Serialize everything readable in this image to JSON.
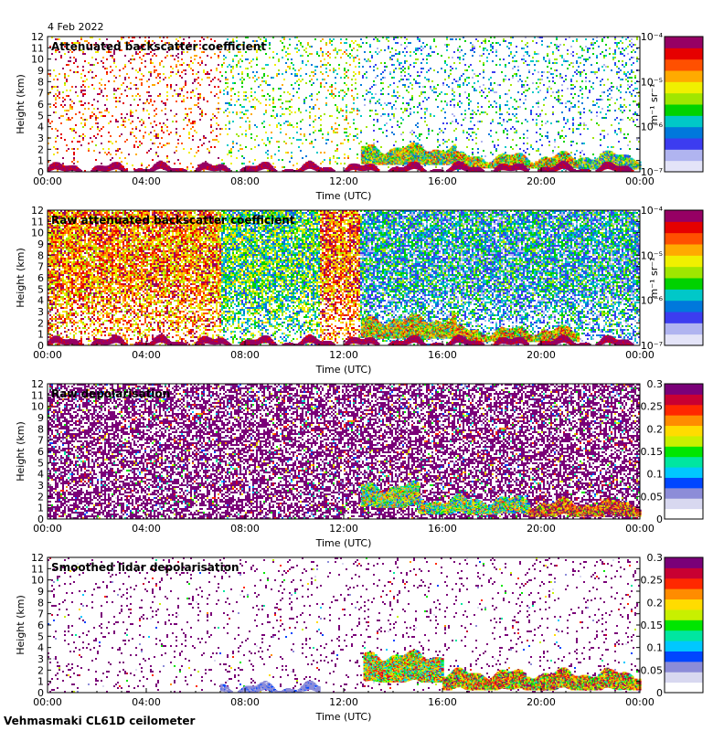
{
  "header": {
    "date": "4 Feb 2022"
  },
  "footer": {
    "site": "Vehmasmaki CL61D ceilometer"
  },
  "colors": {
    "beta_scale": [
      "#e4e4f8",
      "#b0b4f0",
      "#3c3cf0",
      "#0078dc",
      "#00c8c8",
      "#00d200",
      "#a0e600",
      "#f0f000",
      "#ffaa00",
      "#ff5000",
      "#e60000",
      "#960064"
    ],
    "depol_scale": [
      "#ffffff",
      "#d8d8f0",
      "#8c8cd8",
      "#0046ff",
      "#00c8ff",
      "#00e6a0",
      "#00e600",
      "#c8f000",
      "#ffdc00",
      "#ff8c00",
      "#ff2800",
      "#c80032",
      "#7a0078"
    ]
  },
  "chart_data": [
    {
      "type": "heatmap",
      "title": "Attenuated backscatter coefficient",
      "xlabel": "Time (UTC)",
      "ylabel": "Height (km)",
      "x_ticks": [
        "00:00",
        "04:00",
        "08:00",
        "12:00",
        "16:00",
        "20:00",
        "00:00"
      ],
      "x_range_hours": [
        0,
        24
      ],
      "ylim": [
        0,
        12
      ],
      "y_ticks": [
        "0",
        "1",
        "2",
        "3",
        "4",
        "5",
        "6",
        "7",
        "8",
        "9",
        "10",
        "11",
        "12"
      ],
      "colorbar": {
        "scale": "log",
        "range": [
          1e-07,
          0.0001
        ],
        "ticks": [
          "10⁻⁷",
          "10⁻⁶",
          "10⁻⁵",
          "10⁻⁴"
        ],
        "label": "m⁻¹ sr⁻¹"
      },
      "mode": "beta",
      "noise_density": 0.16,
      "noise_segments": [
        [
          0,
          7,
          0.8
        ],
        [
          7,
          11,
          0.5
        ],
        [
          11,
          12.6,
          0.55
        ],
        [
          12.6,
          24,
          0.35
        ]
      ],
      "features": [
        {
          "kind": "layer",
          "x0": 12.7,
          "x1": 16.5,
          "h0": 0.6,
          "h1": 2.0,
          "level": 0.55
        },
        {
          "kind": "layer",
          "x0": 16.5,
          "x1": 21.5,
          "h0": 0.3,
          "h1": 1.2,
          "level": 0.6
        },
        {
          "kind": "layer",
          "x0": 21.5,
          "x1": 24,
          "h0": 0.2,
          "h1": 1.3,
          "level": 0.45
        },
        {
          "kind": "ground",
          "x0": 0,
          "x1": 24,
          "h0": 0,
          "h1": 0.3,
          "level": 0.9
        }
      ]
    },
    {
      "type": "heatmap",
      "title": "Raw attenuated backscatter coefficient",
      "xlabel": "Time (UTC)",
      "ylabel": "Height (km)",
      "x_ticks": [
        "00:00",
        "04:00",
        "08:00",
        "12:00",
        "16:00",
        "20:00",
        "00:00"
      ],
      "x_range_hours": [
        0,
        24
      ],
      "ylim": [
        0,
        12
      ],
      "y_ticks": [
        "0",
        "1",
        "2",
        "3",
        "4",
        "5",
        "6",
        "7",
        "8",
        "9",
        "10",
        "11",
        "12"
      ],
      "colorbar": {
        "scale": "log",
        "range": [
          1e-07,
          0.0001
        ],
        "ticks": [
          "10⁻⁷",
          "10⁻⁶",
          "10⁻⁵",
          "10⁻⁴"
        ],
        "label": "m⁻¹ sr⁻¹"
      },
      "mode": "beta-dense",
      "noise_density": 0.85,
      "noise_segments": [
        [
          0,
          7,
          0.75
        ],
        [
          7,
          11,
          0.45
        ],
        [
          11,
          12.6,
          0.78
        ],
        [
          12.6,
          24,
          0.32
        ]
      ],
      "features": [
        {
          "kind": "layer",
          "x0": 12.7,
          "x1": 16.5,
          "h0": 0.6,
          "h1": 2.2,
          "level": 0.6
        },
        {
          "kind": "layer",
          "x0": 16.5,
          "x1": 21.5,
          "h0": 0.3,
          "h1": 1.2,
          "level": 0.65
        },
        {
          "kind": "ground",
          "x0": 0,
          "x1": 24,
          "h0": 0,
          "h1": 0.3,
          "level": 0.9
        }
      ]
    },
    {
      "type": "heatmap",
      "title": "Raw depolarisation",
      "xlabel": "Time (UTC)",
      "ylabel": "Height (km)",
      "x_ticks": [
        "00:00",
        "04:00",
        "08:00",
        "12:00",
        "16:00",
        "20:00",
        "00:00"
      ],
      "x_range_hours": [
        0,
        24
      ],
      "ylim": [
        0,
        12
      ],
      "y_ticks": [
        "0",
        "1",
        "2",
        "3",
        "4",
        "5",
        "6",
        "7",
        "8",
        "9",
        "10",
        "11",
        "12"
      ],
      "colorbar": {
        "scale": "linear",
        "range": [
          0,
          0.3
        ],
        "ticks": [
          "0",
          "0.05",
          "0.1",
          "0.15",
          "0.2",
          "0.25",
          "0.3"
        ],
        "label": ""
      },
      "mode": "depol-dense",
      "noise_density": 0.6,
      "noise_segments": [
        [
          0,
          24,
          1.0
        ]
      ],
      "features": [
        {
          "kind": "layer",
          "x0": 12.7,
          "x1": 15.0,
          "h0": 1.0,
          "h1": 2.8,
          "level": 0.5
        },
        {
          "kind": "layer",
          "x0": 15.0,
          "x1": 19.5,
          "h0": 0.4,
          "h1": 1.6,
          "level": 0.5
        },
        {
          "kind": "layer",
          "x0": 19.5,
          "x1": 24,
          "h0": 0.2,
          "h1": 1.3,
          "level": 0.8
        }
      ]
    },
    {
      "type": "heatmap",
      "title": "Smoothed lidar depolarisation",
      "xlabel": "Time (UTC)",
      "ylabel": "Height (km)",
      "x_ticks": [
        "00:00",
        "04:00",
        "08:00",
        "12:00",
        "16:00",
        "20:00",
        "00:00"
      ],
      "x_range_hours": [
        0,
        24
      ],
      "ylim": [
        0,
        12
      ],
      "y_ticks": [
        "0",
        "1",
        "2",
        "3",
        "4",
        "5",
        "6",
        "7",
        "8",
        "9",
        "10",
        "11",
        "12"
      ],
      "colorbar": {
        "scale": "linear",
        "range": [
          0,
          0.3
        ],
        "ticks": [
          "0",
          "0.05",
          "0.1",
          "0.15",
          "0.2",
          "0.25",
          "0.3"
        ],
        "label": ""
      },
      "mode": "depol-sparse",
      "noise_density": 0.07,
      "noise_segments": [
        [
          0,
          24,
          1.0
        ]
      ],
      "features": [
        {
          "kind": "layer",
          "x0": 12.8,
          "x1": 16.0,
          "h0": 0.9,
          "h1": 3.2,
          "level": 0.6
        },
        {
          "kind": "layer",
          "x0": 16.0,
          "x1": 24,
          "h0": 0.2,
          "h1": 1.6,
          "level": 0.7
        },
        {
          "kind": "ground",
          "x0": 7,
          "x1": 11,
          "h0": 0,
          "h1": 0.4,
          "level": 0.15
        }
      ]
    }
  ]
}
